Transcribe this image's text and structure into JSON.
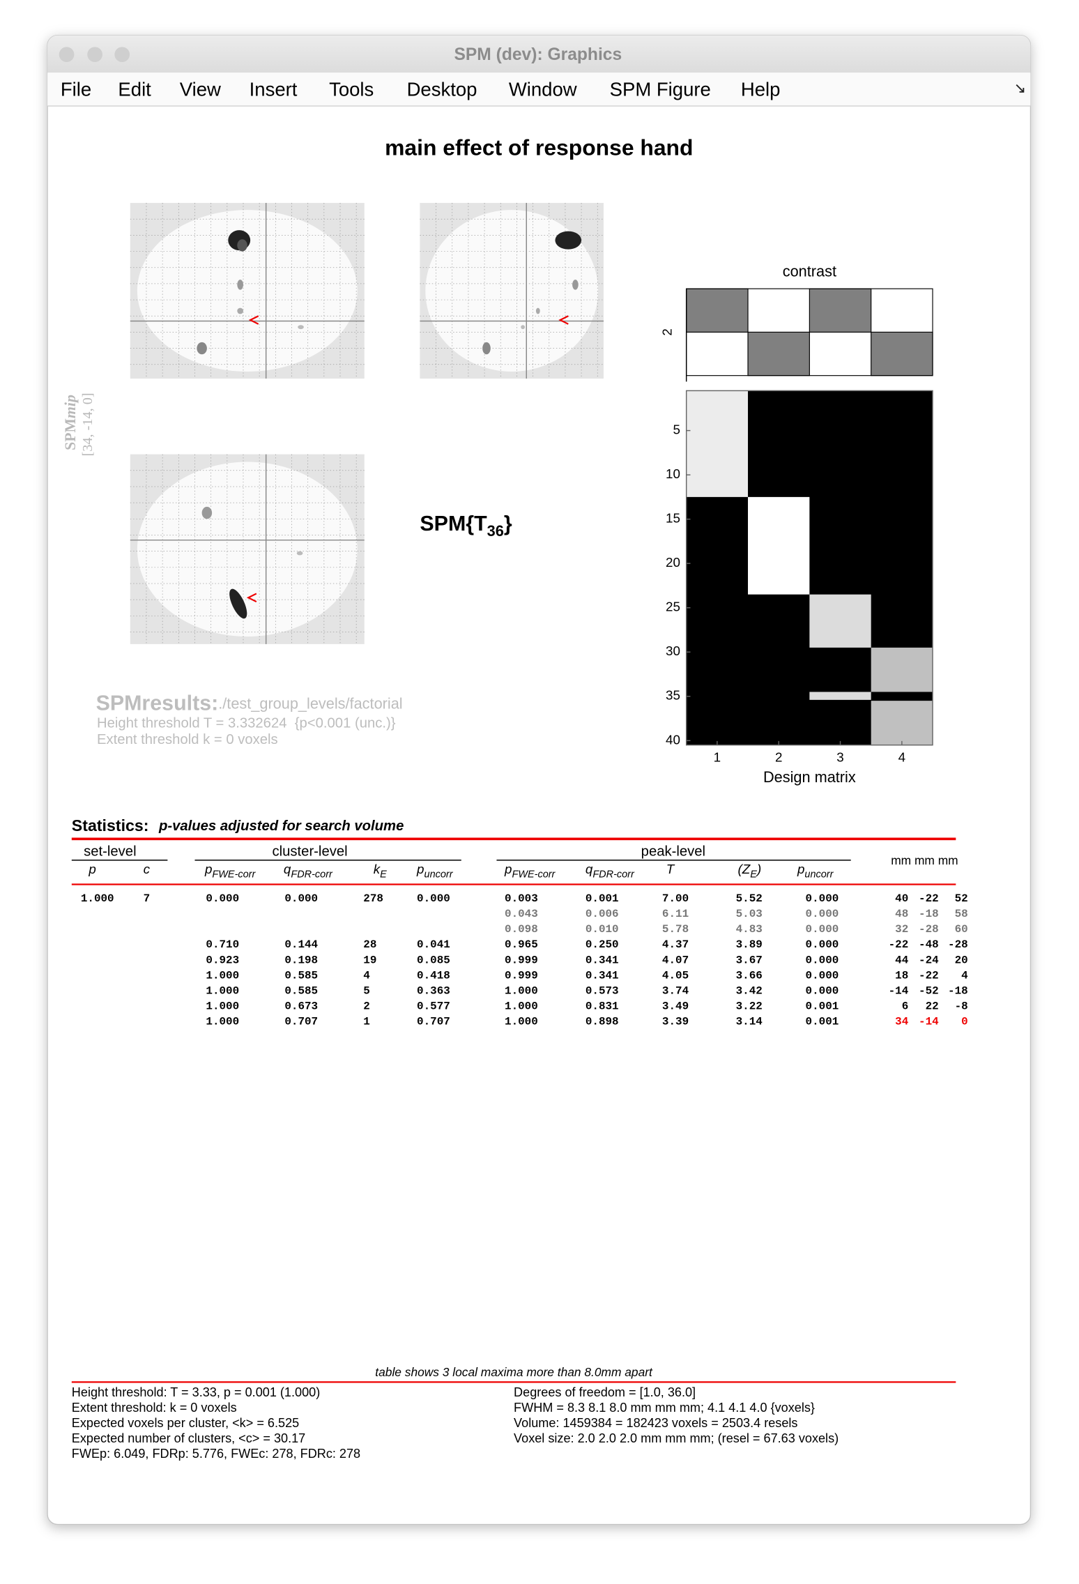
{
  "window": {
    "title": "SPM (dev): Graphics"
  },
  "menu": [
    "File",
    "Edit",
    "View",
    "Insert",
    "Tools",
    "Desktop",
    "Window",
    "SPM Figure",
    "Help"
  ],
  "figure": {
    "title": "main effect of response hand",
    "mip_label": {
      "main": "SPM",
      "italic": "mip"
    },
    "coords": "[34, -14, 0]",
    "stat": {
      "main": "SPM{T",
      "sub": "36",
      "after": "}"
    }
  },
  "design": {
    "contrast_title": "contrast",
    "contrast_label": "2",
    "xlabel": "Design matrix",
    "yticks": [
      5,
      10,
      15,
      20,
      25,
      30,
      35,
      40
    ],
    "xticks": [
      1,
      2,
      3,
      4
    ]
  },
  "results": {
    "heading": "SPMresults:",
    "path": "./test_group_levels/factorial",
    "height": "Height threshold T = 3.332624  {p<0.001 (unc.)}",
    "extent": "Extent threshold k = 0 voxels"
  },
  "statistics": {
    "label": "Statistics:",
    "note": "p-values adjusted for search volume"
  },
  "table": {
    "groups": [
      "set-level",
      "cluster-level",
      "peak-level",
      "mm mm mm"
    ],
    "columns": [
      {
        "main": "p"
      },
      {
        "main": "c"
      },
      {
        "main": "p",
        "sub": "FWE-corr"
      },
      {
        "main": "q",
        "sub": "FDR-corr"
      },
      {
        "main": "k",
        "sub": "E"
      },
      {
        "main": "p",
        "sub": "uncorr"
      },
      {
        "main": "p",
        "sub": "FWE-corr"
      },
      {
        "main": "q",
        "sub": "FDR-corr"
      },
      {
        "main": "T"
      },
      {
        "main": "(Z",
        "sub": "E",
        "after": ")"
      },
      {
        "main": "p",
        "sub": "uncorr"
      }
    ],
    "rows": [
      [
        "1.000",
        "7",
        "0.000",
        "0.000",
        "278",
        "0.000",
        "0.003",
        "0.001",
        "7.00",
        "5.52",
        "0.000",
        "40",
        "-22",
        "52"
      ],
      [
        null,
        null,
        null,
        null,
        null,
        null,
        "0.043",
        "0.006",
        "6.11",
        "5.03",
        "0.000",
        "48",
        "-18",
        "58"
      ],
      [
        null,
        null,
        null,
        null,
        null,
        null,
        "0.098",
        "0.010",
        "5.78",
        "4.83",
        "0.000",
        "32",
        "-28",
        "60"
      ],
      [
        null,
        null,
        "0.710",
        "0.144",
        "28",
        "0.041",
        "0.965",
        "0.250",
        "4.37",
        "3.89",
        "0.000",
        "-22",
        "-48",
        "-28"
      ],
      [
        null,
        null,
        "0.923",
        "0.198",
        "19",
        "0.085",
        "0.999",
        "0.341",
        "4.07",
        "3.67",
        "0.000",
        "44",
        "-24",
        "20"
      ],
      [
        null,
        null,
        "1.000",
        "0.585",
        "4",
        "0.418",
        "0.999",
        "0.341",
        "4.05",
        "3.66",
        "0.000",
        "18",
        "-22",
        "4"
      ],
      [
        null,
        null,
        "1.000",
        "0.585",
        "5",
        "0.363",
        "1.000",
        "0.573",
        "3.74",
        "3.42",
        "0.000",
        "-14",
        "-52",
        "-18"
      ],
      [
        null,
        null,
        "1.000",
        "0.673",
        "2",
        "0.577",
        "1.000",
        "0.831",
        "3.49",
        "3.22",
        "0.001",
        "6",
        "22",
        "-8"
      ],
      [
        null,
        null,
        "1.000",
        "0.707",
        "1",
        "0.707",
        "1.000",
        "0.898",
        "3.39",
        "3.14",
        "0.001",
        "34",
        "-14",
        "0"
      ]
    ]
  },
  "footer": {
    "note": "table shows 3 local maxima more than 8.0mm apart",
    "left": [
      "Height threshold: T = 3.33, p = 0.001 (1.000)",
      "Extent threshold: k = 0 voxels",
      "Expected voxels per cluster, <k> = 6.525",
      "Expected number of clusters, <c> = 30.17",
      "FWEp: 6.049, FDRp: 5.776, FWEc: 278, FDRc: 278"
    ],
    "right": [
      "Degrees of freedom = [1.0, 36.0]",
      "FWHM = 8.3 8.1 8.0 mm mm mm; 4.1 4.1 4.0 {voxels}",
      "Volume: 1459384 = 182423 voxels = 2503.4 resels",
      "Voxel size: 2.0 2.0 2.0 mm mm mm; (resel = 67.63 voxels)"
    ]
  }
}
